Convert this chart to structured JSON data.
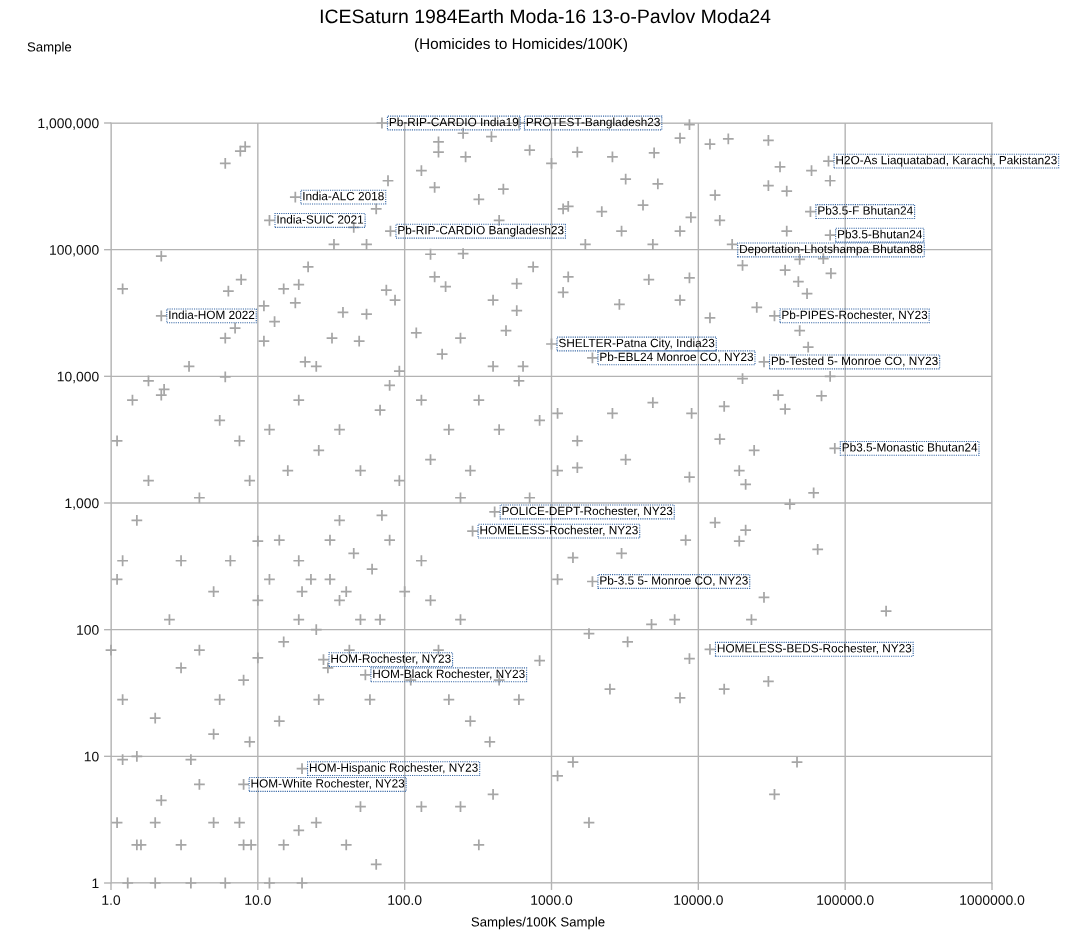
{
  "chart_data": {
    "type": "scatter",
    "title": "ICESaturn 1984Earth Moda-16 13-o-Pavlov Moda24",
    "subtitle": "(Homicides to Homicides/100K)",
    "xlabel": "Samples/100K Sample",
    "ylabel": "Sample",
    "log": "xy",
    "grid": true,
    "marker": "cross",
    "color": "#a6a6a6",
    "xlim": [
      1,
      1000000
    ],
    "ylim": [
      1,
      1000000
    ],
    "xticks": [
      {
        "value": 1,
        "label": "1.0"
      },
      {
        "value": 10,
        "label": "10.0"
      },
      {
        "value": 100,
        "label": "100.0"
      },
      {
        "value": 1000,
        "label": "1000.0"
      },
      {
        "value": 10000,
        "label": "10000.0"
      },
      {
        "value": 100000,
        "label": "100000.0"
      },
      {
        "value": 1000000,
        "label": "1000000.0"
      }
    ],
    "yticks": [
      1,
      10,
      100,
      {
        "value": 1000,
        "label": "1,000"
      },
      {
        "value": 10000,
        "label": "10,000"
      },
      {
        "value": 100000,
        "label": "100,000"
      },
      {
        "value": 1000000,
        "label": "1,000,000"
      }
    ],
    "x": [
      70,
      600,
      18,
      12,
      80,
      77000,
      58000,
      79000,
      17000,
      33000,
      1000,
      1900,
      28000,
      85000,
      410,
      290,
      1900,
      12000,
      28,
      54,
      20,
      8,
      2.2,
      8700,
      7500,
      16000,
      30000,
      12000,
      1500,
      2600,
      5000,
      59000,
      79000,
      36000,
      40000,
      3200,
      5300,
      30000,
      13000,
      1200,
      2200,
      4200,
      8900,
      14000,
      3000,
      7500,
      40000,
      1700,
      4900,
      71000,
      49000,
      80000,
      20000,
      39000,
      48000,
      55000,
      25000,
      12000,
      7500,
      2900,
      1300,
      4600,
      8700,
      1200,
      56000,
      49000,
      79000,
      20000,
      35000,
      69000,
      15000,
      39000,
      9000,
      4900,
      2600,
      1100,
      14000,
      24000,
      3200,
      1500,
      8700,
      21000,
      19000,
      190000,
      65000,
      23000,
      28000,
      19000,
      42000,
      61000,
      6900,
      4800,
      1800,
      13000,
      3300,
      2500,
      7500,
      30000,
      15000,
      8700,
      1100,
      1400,
      3000,
      8200,
      21000,
      33000,
      47000,
      64,
      320,
      1800,
      240,
      400,
      130,
      1400,
      1100,
      6,
      7,
      11,
      15,
      22,
      33,
      45,
      64,
      130,
      170,
      250,
      3.4,
      19,
      55,
      77,
      170,
      390,
      260,
      470,
      320,
      160,
      1300,
      440,
      1000,
      710,
      150,
      250,
      750,
      160,
      190,
      580,
      580,
      400,
      240,
      490,
      120,
      180,
      400,
      640,
      92,
      79,
      75,
      86,
      55,
      38,
      32,
      49,
      21,
      25,
      13,
      18,
      11,
      7.7,
      6.3,
      6,
      2.3,
      1.2,
      2.2,
      6,
      7.6,
      8.2,
      1.1,
      1.4,
      1.8,
      2.2,
      1.5,
      1.8,
      1.2,
      1.0,
      1.2,
      1.1,
      1.2,
      1.1,
      1.6,
      4,
      6.5,
      10,
      14,
      19,
      31,
      42,
      58,
      68,
      26,
      14,
      8.8,
      5.5,
      3.5,
      2.2,
      7.5,
      19,
      50,
      4,
      2.5,
      3,
      8.8,
      16,
      26,
      50,
      92,
      36,
      79,
      130,
      150,
      170,
      240,
      110,
      200,
      280,
      380,
      600,
      440,
      830,
      19,
      23,
      36,
      50,
      12,
      31,
      200,
      320,
      600,
      440,
      830,
      150,
      280,
      240,
      710,
      1100,
      1500,
      130,
      68,
      36,
      19,
      12,
      7.5,
      5.5,
      1.3,
      2,
      3.5,
      6,
      12,
      20,
      1.5,
      3,
      8,
      15,
      40,
      2,
      5,
      25,
      10,
      15,
      25,
      40,
      60,
      8,
      5,
      30,
      20,
      45,
      70,
      100,
      10,
      5,
      3,
      2,
      1.5,
      4,
      9
    ],
    "values": [
      1000000,
      1000000,
      260000,
      170000,
      140000,
      500000,
      200000,
      130000,
      110000,
      30000,
      18000,
      14000,
      13000,
      2700,
      850,
      600,
      240,
      70,
      58,
      44,
      8,
      6,
      30000,
      970000,
      760000,
      750000,
      730000,
      680000,
      590000,
      540000,
      580000,
      420000,
      350000,
      450000,
      290000,
      360000,
      330000,
      320000,
      270000,
      210000,
      200000,
      225000,
      180000,
      170000,
      140000,
      140000,
      140000,
      110000,
      110000,
      85000,
      84000,
      65000,
      75000,
      69000,
      56000,
      45000,
      35000,
      29000,
      40000,
      37000,
      61000,
      58000,
      60000,
      46000,
      17000,
      23000,
      10000,
      9600,
      7100,
      7000,
      5800,
      5500,
      5100,
      6200,
      5100,
      5100,
      3200,
      2600,
      2200,
      1900,
      1600,
      1400,
      1800,
      140,
      430,
      120,
      180,
      500,
      980,
      1200,
      120,
      110,
      93,
      700,
      80,
      34,
      29,
      39,
      34,
      59,
      250,
      370,
      400,
      510,
      610,
      5,
      9,
      1.4,
      2,
      3,
      4,
      5,
      4,
      9,
      7,
      20000,
      24000,
      36000,
      49000,
      73000,
      110000,
      150000,
      210000,
      420000,
      590000,
      830000,
      12000,
      53000,
      110000,
      350000,
      710000,
      780000,
      540000,
      300000,
      250000,
      310000,
      220000,
      170000,
      480000,
      610000,
      92000,
      93000,
      73000,
      61000,
      51000,
      54000,
      33000,
      40000,
      20000,
      23000,
      22000,
      15000,
      12000,
      12000,
      11000,
      8500,
      48000,
      40000,
      31000,
      32000,
      20000,
      19000,
      13000,
      12000,
      27000,
      38000,
      19000,
      58000,
      47000,
      9900,
      7900,
      49000,
      89000,
      480000,
      600000,
      650000,
      3100,
      6500,
      9200,
      7100,
      730,
      1500,
      350,
      69,
      28,
      250,
      9.4,
      3,
      2,
      1100,
      350,
      170,
      510,
      120,
      250,
      69,
      28,
      120,
      28,
      19,
      13,
      28,
      9.4,
      4.5,
      3,
      2.6,
      4,
      69,
      120,
      350,
      1500,
      1800,
      2600,
      1800,
      1500,
      730,
      510,
      350,
      170,
      69,
      120,
      40,
      28,
      19,
      13,
      28,
      40,
      57,
      350,
      250,
      170,
      120,
      250,
      510,
      3800,
      6500,
      9200,
      3800,
      4500,
      2200,
      1800,
      1100,
      1100,
      1800,
      3100,
      6500,
      5400,
      3800,
      6500,
      3800,
      3100,
      4500,
      1,
      1,
      1,
      1,
      1,
      1,
      2,
      2,
      2,
      2,
      2,
      3,
      3,
      3,
      60,
      80,
      100,
      200,
      300,
      40,
      15,
      50,
      200,
      400,
      800,
      200,
      500,
      200,
      50,
      20,
      10,
      6,
      2
    ],
    "annotations": [
      {
        "text": "Pb-RIP-CARDIO India19",
        "x": 70,
        "y": 1000000
      },
      {
        "text": "PROTEST-Bangladesh23",
        "x": 600,
        "y": 1000000
      },
      {
        "text": "H2O-As Liaquatabad, Karachi, Pakistan23",
        "x": 77000,
        "y": 500000
      },
      {
        "text": "India-ALC 2018",
        "x": 18,
        "y": 260000
      },
      {
        "text": "Pb3.5-F Bhutan24",
        "x": 58000,
        "y": 200000
      },
      {
        "text": "India-SUIC 2021",
        "x": 12,
        "y": 170000
      },
      {
        "text": "Pb-RIP-CARDIO Bangladesh23",
        "x": 80,
        "y": 140000
      },
      {
        "text": "Pb3.5-Bhutan24",
        "x": 79000,
        "y": 130000
      },
      {
        "text": "Deportation-Lhotshampa Bhutan88",
        "x": 17000,
        "y": 110000
      },
      {
        "text": "India-HOM 2022",
        "x": 2.2,
        "y": 30000
      },
      {
        "text": "Pb-PIPES-Rochester, NY23",
        "x": 33000,
        "y": 30000
      },
      {
        "text": "SHELTER-Patna City, India23",
        "x": 1000,
        "y": 18000
      },
      {
        "text": "Pb-EBL24 Monroe CO, NY23",
        "x": 1900,
        "y": 14000
      },
      {
        "text": "Pb-Tested 5- Monroe CO, NY23",
        "x": 28000,
        "y": 13000
      },
      {
        "text": "Pb3.5-Monastic Bhutan24",
        "x": 85000,
        "y": 2700
      },
      {
        "text": "POLICE-DEPT-Rochester, NY23",
        "x": 410,
        "y": 850
      },
      {
        "text": "HOMELESS-Rochester, NY23",
        "x": 290,
        "y": 600
      },
      {
        "text": "Pb-3.5 5- Monroe CO, NY23",
        "x": 1900,
        "y": 240
      },
      {
        "text": "HOMELESS-BEDS-Rochester, NY23",
        "x": 12000,
        "y": 70
      },
      {
        "text": "HOM-Rochester, NY23",
        "x": 28,
        "y": 58
      },
      {
        "text": "HOM-Black Rochester, NY23",
        "x": 54,
        "y": 44
      },
      {
        "text": "HOM-Hispanic Rochester, NY23",
        "x": 20,
        "y": 8
      },
      {
        "text": "HOM-White Rochester, NY23",
        "x": 8,
        "y": 6
      }
    ]
  }
}
